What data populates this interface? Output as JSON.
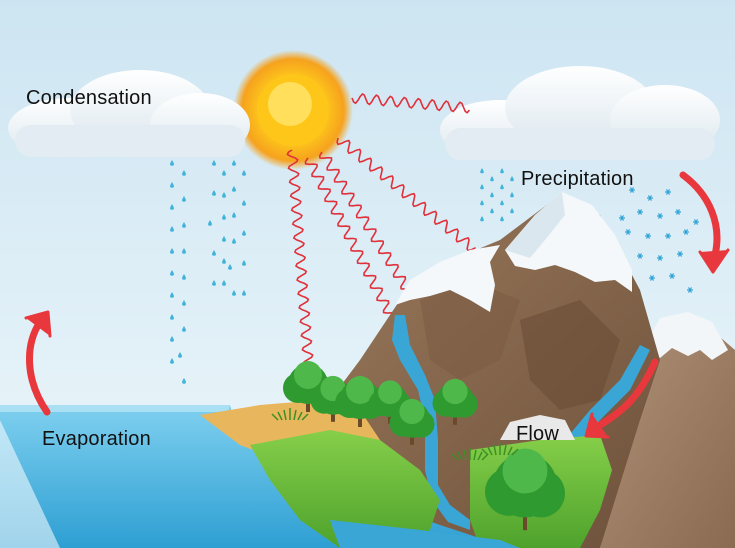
{
  "labels": {
    "condensation": "Condensation",
    "precipitation": "Precipitation",
    "evaporation": "Evaporation",
    "flow": "Flow"
  },
  "colors": {
    "sky_top": "#cfe6f3",
    "sky_bottom": "#e9f4fa",
    "sun_core": "#ffd21a",
    "sun_outer": "#f39a1c",
    "heat_wave": "#e0303a",
    "arrow": "#e8383d",
    "rain": "#3fb4d8",
    "water": "#3aa6d6",
    "mountain": "#8b6a4e",
    "snow": "#f4f8fb",
    "grass": "#6dbb3c",
    "sand": "#e8b65c",
    "tree": "#2f9a2f"
  },
  "icons": [
    "sun-icon",
    "cloud-icon",
    "arrow-icon",
    "tree-icon",
    "mountain-icon",
    "raindrop-icon",
    "snowflake-icon"
  ]
}
